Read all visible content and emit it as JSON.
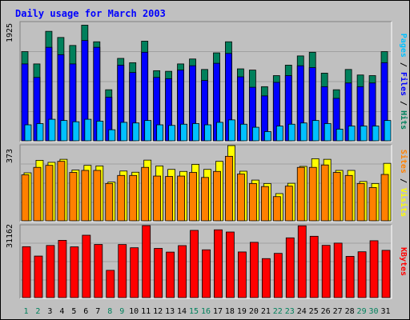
{
  "title": "Daily usage for March 2003",
  "colors": {
    "hits": "#00805c",
    "files": "#0000ff",
    "pages": "#00c0ff",
    "visits": "#ffff00",
    "sites": "#ff8000",
    "kbytes": "#ff0000",
    "weekday_label": "#000000",
    "weekend_label": "#00805c",
    "title": "#0000ff"
  },
  "chart_data": [
    {
      "type": "bar",
      "panel": "hits-files-pages",
      "ymax_label": "1925",
      "ylim": [
        0,
        1925
      ],
      "axis_label_parts": [
        {
          "text": "Pages",
          "color": "#00c0ff"
        },
        {
          "text": " / ",
          "color": "#000000"
        },
        {
          "text": "Files",
          "color": "#0000ff"
        },
        {
          "text": " / ",
          "color": "#000000"
        },
        {
          "text": "Hits",
          "color": "#00805c"
        }
      ],
      "categories": [
        "1",
        "2",
        "3",
        "4",
        "5",
        "6",
        "7",
        "8",
        "9",
        "10",
        "11",
        "12",
        "13",
        "14",
        "15",
        "16",
        "17",
        "18",
        "19",
        "20",
        "21",
        "22",
        "23",
        "24",
        "25",
        "26",
        "27",
        "28",
        "29",
        "30",
        "31"
      ],
      "weekend_days": [
        "1",
        "2",
        "8",
        "9",
        "15",
        "16",
        "22",
        "23",
        "29",
        "30"
      ],
      "series": [
        {
          "key": "hits",
          "values": [
            1450,
            1250,
            1780,
            1680,
            1550,
            1880,
            1610,
            830,
            1340,
            1270,
            1620,
            1140,
            1130,
            1250,
            1330,
            1160,
            1430,
            1610,
            1170,
            1150,
            880,
            1060,
            1230,
            1380,
            1440,
            1100,
            830,
            1160,
            1070,
            1060,
            1450
          ]
        },
        {
          "key": "files",
          "values": [
            1250,
            1030,
            1520,
            1400,
            1250,
            1630,
            1520,
            710,
            1230,
            1110,
            1440,
            1030,
            1010,
            1150,
            1220,
            980,
            1260,
            1420,
            1040,
            870,
            730,
            950,
            1060,
            1220,
            1190,
            880,
            690,
            940,
            880,
            940,
            1270
          ]
        },
        {
          "key": "pages",
          "values": [
            260,
            280,
            350,
            330,
            310,
            350,
            320,
            180,
            300,
            290,
            330,
            260,
            250,
            270,
            280,
            260,
            300,
            340,
            270,
            220,
            150,
            240,
            270,
            290,
            330,
            280,
            190,
            240,
            240,
            240,
            330
          ]
        }
      ]
    },
    {
      "type": "bar",
      "panel": "visits-sites",
      "ymax_label": "373",
      "ylim": [
        0,
        373
      ],
      "axis_label_parts": [
        {
          "text": "Sites",
          "color": "#ff8000"
        },
        {
          "text": " / ",
          "color": "#000000"
        },
        {
          "text": "Visits",
          "color": "#ffff00"
        }
      ],
      "categories": [
        "1",
        "2",
        "3",
        "4",
        "5",
        "6",
        "7",
        "8",
        "9",
        "10",
        "11",
        "12",
        "13",
        "14",
        "15",
        "16",
        "17",
        "18",
        "19",
        "20",
        "21",
        "22",
        "23",
        "24",
        "25",
        "26",
        "27",
        "28",
        "29",
        "30",
        "31"
      ],
      "series": [
        {
          "key": "visits",
          "values": [
            238,
            300,
            290,
            305,
            252,
            275,
            272,
            192,
            247,
            241,
            301,
            272,
            255,
            245,
            280,
            255,
            295,
            373,
            246,
            202,
            185,
            135,
            186,
            270,
            308,
            305,
            250,
            250,
            195,
            185,
            285
          ]
        },
        {
          "key": "sites",
          "values": [
            228,
            265,
            275,
            295,
            240,
            250,
            250,
            185,
            225,
            225,
            265,
            222,
            220,
            222,
            240,
            215,
            245,
            320,
            232,
            185,
            170,
            120,
            172,
            265,
            265,
            277,
            240,
            225,
            185,
            165,
            230
          ]
        }
      ]
    },
    {
      "type": "bar",
      "panel": "kbytes",
      "ymax_label": "31162",
      "ylim": [
        0,
        31162
      ],
      "axis_label_parts": [
        {
          "text": "KBytes",
          "color": "#ff0000"
        }
      ],
      "categories": [
        "1",
        "2",
        "3",
        "4",
        "5",
        "6",
        "7",
        "8",
        "9",
        "10",
        "11",
        "12",
        "13",
        "14",
        "15",
        "16",
        "17",
        "18",
        "19",
        "20",
        "21",
        "22",
        "23",
        "24",
        "25",
        "26",
        "27",
        "28",
        "29",
        "30",
        "31"
      ],
      "series": [
        {
          "key": "kbytes",
          "values": [
            22040,
            17980,
            22570,
            24790,
            21970,
            27000,
            23010,
            11800,
            22980,
            21580,
            31160,
            21300,
            19700,
            22510,
            29100,
            20690,
            29350,
            28390,
            19760,
            23930,
            16880,
            19150,
            25870,
            31080,
            26550,
            22620,
            23590,
            17850,
            19840,
            24620,
            20460
          ]
        }
      ]
    }
  ]
}
